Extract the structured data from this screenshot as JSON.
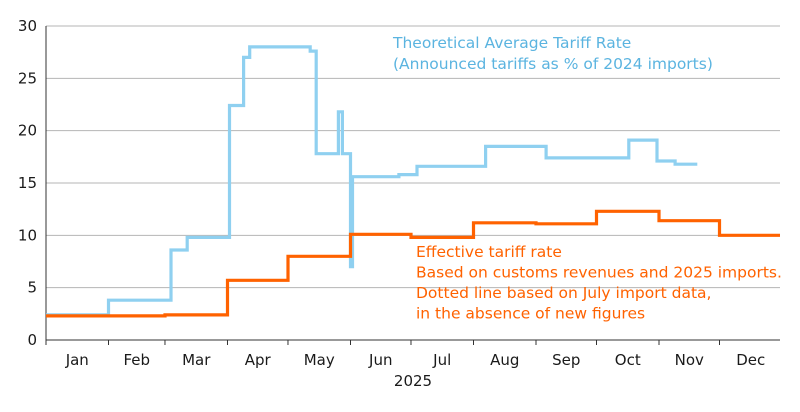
{
  "chart_data": {
    "type": "line",
    "title": "",
    "xlabel": "2025",
    "ylabel": "",
    "ylim": [
      0,
      30
    ],
    "yticks": [
      0,
      5,
      10,
      15,
      20,
      25,
      30
    ],
    "grid": "horizontal",
    "legend": "none",
    "months": [
      "Jan",
      "Feb",
      "Mar",
      "Apr",
      "May",
      "Jun",
      "Jul",
      "Aug",
      "Sep",
      "Oct",
      "Nov",
      "Dec"
    ],
    "xlim": [
      "2025-01-01",
      "2025-12-31"
    ],
    "annotations": {
      "theoretical": [
        "Theoretical Average Tariff Rate",
        "(Announced tariffs as % of 2024 imports)"
      ],
      "effective": [
        "Effective tariff rate",
        "Based on customs revenues and 2025 imports.",
        "Dotted line based on July import data,",
        "in the absence of new figures"
      ]
    },
    "series": [
      {
        "key": "theoretical",
        "color": "#8FD0F0",
        "step": true,
        "points": [
          [
            "2025-01-01",
            2.4
          ],
          [
            "2025-02-01",
            3.8
          ],
          [
            "2025-03-04",
            8.6
          ],
          [
            "2025-03-12",
            9.8
          ],
          [
            "2025-04-02",
            22.4
          ],
          [
            "2025-04-09",
            27.0
          ],
          [
            "2025-04-12",
            28.0
          ],
          [
            "2025-05-12",
            27.6
          ],
          [
            "2025-05-15",
            17.8
          ],
          [
            "2025-05-26",
            21.8
          ],
          [
            "2025-05-28",
            17.8
          ],
          [
            "2025-06-01",
            7.0
          ],
          [
            "2025-06-02",
            15.6
          ],
          [
            "2025-06-25",
            15.8
          ],
          [
            "2025-07-04",
            16.6
          ],
          [
            "2025-08-07",
            18.5
          ],
          [
            "2025-09-06",
            17.4
          ],
          [
            "2025-10-17",
            19.1
          ],
          [
            "2025-10-31",
            17.1
          ],
          [
            "2025-11-09",
            16.8
          ],
          [
            "2025-11-20",
            16.8
          ]
        ]
      },
      {
        "key": "effective",
        "color": "#FF6200",
        "step": true,
        "points": [
          [
            "2025-01-01",
            2.3
          ],
          [
            "2025-03-01",
            2.4
          ],
          [
            "2025-04-01",
            5.7
          ],
          [
            "2025-05-01",
            8.0
          ],
          [
            "2025-06-01",
            10.1
          ],
          [
            "2025-07-01",
            9.8
          ],
          [
            "2025-08-01",
            11.2
          ],
          [
            "2025-09-01",
            11.1
          ],
          [
            "2025-10-01",
            12.3
          ],
          [
            "2025-11-01",
            11.4
          ],
          [
            "2025-12-01",
            10.0
          ],
          [
            "2025-12-31",
            10.0
          ]
        ]
      }
    ]
  }
}
